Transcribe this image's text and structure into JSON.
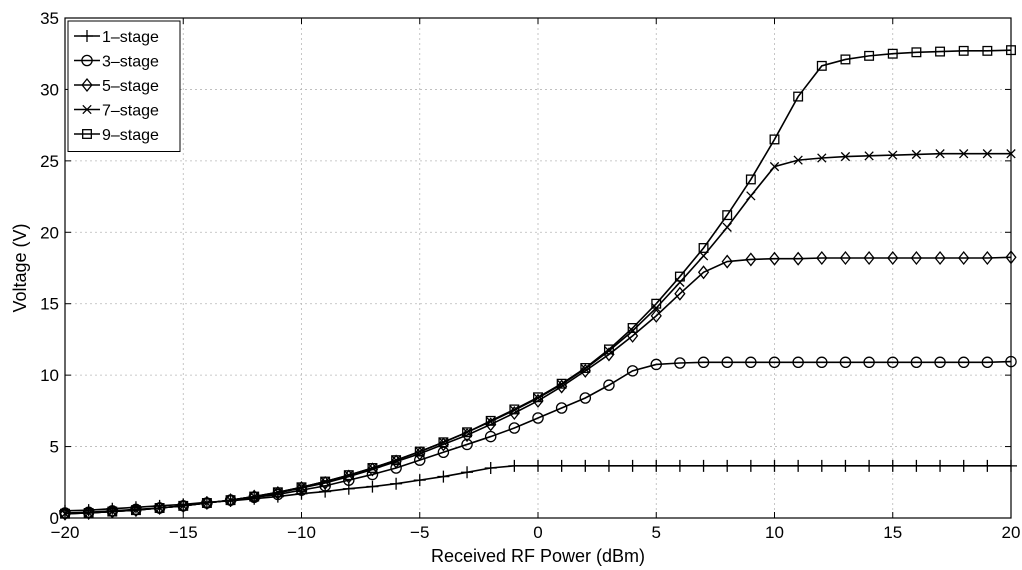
{
  "chart_data": {
    "type": "line",
    "title": "",
    "xlabel": "Received RF Power (dBm)",
    "ylabel": "Voltage (V)",
    "xlim": [
      -20,
      20
    ],
    "ylim": [
      0,
      35
    ],
    "xticks": [
      -20,
      -15,
      -10,
      -5,
      0,
      5,
      10,
      15,
      20
    ],
    "yticks": [
      0,
      5,
      10,
      15,
      20,
      25,
      30,
      35
    ],
    "grid": true,
    "legend_position": "top-left",
    "x": [
      -20,
      -19,
      -18,
      -17,
      -16,
      -15,
      -14,
      -13,
      -12,
      -11,
      -10,
      -9,
      -8,
      -7,
      -6,
      -5,
      -4,
      -3,
      -2,
      -1,
      0,
      1,
      2,
      3,
      4,
      5,
      6,
      7,
      8,
      9,
      10,
      11,
      12,
      13,
      14,
      15,
      16,
      17,
      18,
      19,
      20
    ],
    "series": [
      {
        "name": "1–stage",
        "marker": "plus",
        "values": [
          0.5,
          0.55,
          0.65,
          0.75,
          0.85,
          0.95,
          1.1,
          1.2,
          1.35,
          1.5,
          1.7,
          1.85,
          2.05,
          2.2,
          2.4,
          2.65,
          2.9,
          3.2,
          3.5,
          3.65,
          3.65,
          3.65,
          3.65,
          3.65,
          3.65,
          3.65,
          3.65,
          3.65,
          3.65,
          3.65,
          3.65,
          3.65,
          3.65,
          3.65,
          3.65,
          3.65,
          3.65,
          3.65,
          3.65,
          3.65,
          3.65
        ]
      },
      {
        "name": "3–stage",
        "marker": "circle",
        "values": [
          0.35,
          0.4,
          0.5,
          0.6,
          0.7,
          0.85,
          1.05,
          1.25,
          1.45,
          1.65,
          1.95,
          2.25,
          2.65,
          3.05,
          3.5,
          4.05,
          4.6,
          5.15,
          5.7,
          6.3,
          7.0,
          7.7,
          8.4,
          9.3,
          10.3,
          10.75,
          10.85,
          10.9,
          10.9,
          10.9,
          10.9,
          10.9,
          10.9,
          10.9,
          10.9,
          10.9,
          10.9,
          10.9,
          10.9,
          10.9,
          10.95
        ]
      },
      {
        "name": "5–stage",
        "marker": "diamond",
        "values": [
          0.3,
          0.35,
          0.45,
          0.55,
          0.7,
          0.85,
          1.05,
          1.25,
          1.5,
          1.75,
          2.1,
          2.45,
          2.9,
          3.4,
          3.95,
          4.5,
          5.15,
          5.8,
          6.55,
          7.35,
          8.2,
          9.2,
          10.3,
          11.45,
          12.75,
          14.15,
          15.7,
          17.2,
          17.95,
          18.1,
          18.15,
          18.15,
          18.2,
          18.2,
          18.2,
          18.2,
          18.2,
          18.2,
          18.2,
          18.2,
          18.25
        ]
      },
      {
        "name": "7–stage",
        "marker": "x",
        "values": [
          0.3,
          0.35,
          0.45,
          0.55,
          0.7,
          0.85,
          1.05,
          1.25,
          1.5,
          1.8,
          2.15,
          2.55,
          3.0,
          3.5,
          4.05,
          4.65,
          5.3,
          6.0,
          6.75,
          7.55,
          8.4,
          9.35,
          10.45,
          11.7,
          13.1,
          14.7,
          16.5,
          18.35,
          20.35,
          22.55,
          24.6,
          25.05,
          25.2,
          25.3,
          25.35,
          25.4,
          25.45,
          25.5,
          25.5,
          25.5,
          25.5
        ]
      },
      {
        "name": "9–stage",
        "marker": "square",
        "values": [
          0.3,
          0.35,
          0.45,
          0.55,
          0.7,
          0.85,
          1.05,
          1.25,
          1.5,
          1.8,
          2.15,
          2.55,
          3.0,
          3.5,
          4.05,
          4.65,
          5.3,
          6.0,
          6.8,
          7.6,
          8.45,
          9.4,
          10.5,
          11.8,
          13.3,
          15.0,
          16.9,
          18.9,
          21.2,
          23.7,
          26.5,
          29.5,
          31.65,
          32.1,
          32.35,
          32.5,
          32.6,
          32.65,
          32.7,
          32.7,
          32.75
        ]
      }
    ]
  }
}
